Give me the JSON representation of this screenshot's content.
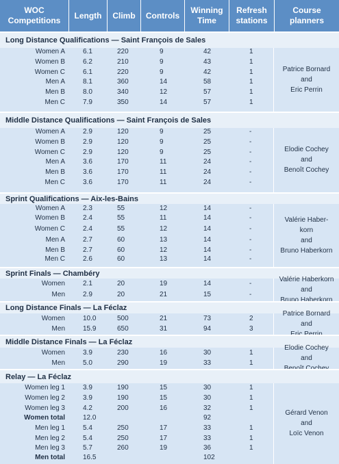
{
  "headers": [
    "WOC Competitions",
    "Length",
    "Climb",
    "Controls",
    "Winning Time",
    "Refresh stations",
    "Course planners"
  ],
  "sections": [
    {
      "title": "Long Distance Qualifications — Saint François de Sales",
      "planners": [
        "Patrice Bornard",
        "and",
        "Eric Perrin"
      ],
      "rows": [
        {
          "label": "Women A",
          "length": "6.1",
          "climb": "220",
          "controls": "9",
          "time": "42",
          "refresh": "1"
        },
        {
          "label": "Women B",
          "length": "6.2",
          "climb": "210",
          "controls": "9",
          "time": "43",
          "refresh": "1"
        },
        {
          "label": "Women C",
          "length": "6.1",
          "climb": "220",
          "controls": "9",
          "time": "42",
          "refresh": "1"
        },
        {
          "label": "Men A",
          "length": "8.1",
          "climb": "360",
          "controls": "14",
          "time": "58",
          "refresh": "1"
        },
        {
          "label": "Men B",
          "length": "8.0",
          "climb": "340",
          "controls": "12",
          "time": "57",
          "refresh": "1"
        },
        {
          "label": "Men C",
          "length": "7.9",
          "climb": "350",
          "controls": "14",
          "time": "57",
          "refresh": "1"
        }
      ]
    },
    {
      "title": "Middle Distance Qualifications — Saint François de Sales",
      "planners": [
        "Elodie Cochey",
        "and",
        "Benoît Cochey"
      ],
      "rows": [
        {
          "label": "Women A",
          "length": "2.9",
          "climb": "120",
          "controls": "9",
          "time": "25",
          "refresh": "-"
        },
        {
          "label": "Women B",
          "length": "2.9",
          "climb": "120",
          "controls": "9",
          "time": "25",
          "refresh": "-"
        },
        {
          "label": "Women C",
          "length": "2.9",
          "climb": "120",
          "controls": "9",
          "time": "25",
          "refresh": "-"
        },
        {
          "label": "Men A",
          "length": "3.6",
          "climb": "170",
          "controls": "11",
          "time": "24",
          "refresh": "-"
        },
        {
          "label": "Men B",
          "length": "3.6",
          "climb": "170",
          "controls": "11",
          "time": "24",
          "refresh": "-"
        },
        {
          "label": "Men C",
          "length": "3.6",
          "climb": "170",
          "controls": "11",
          "time": "24",
          "refresh": "-"
        }
      ]
    },
    {
      "title": "Sprint Qualifications — Aix-les-Bains",
      "planners": [
        "Valérie Haber-",
        "korn",
        "and",
        "Bruno Haberkorn"
      ],
      "rows": [
        {
          "label": "Women A",
          "length": "2.3",
          "climb": "55",
          "controls": "12",
          "time": "14",
          "refresh": "-"
        },
        {
          "label": "Women B",
          "length": "2.4",
          "climb": "55",
          "controls": "11",
          "time": "14",
          "refresh": "-"
        },
        {
          "label": "Women C",
          "length": "2.4",
          "climb": "55",
          "controls": "12",
          "time": "14",
          "refresh": "-"
        },
        {
          "label": "Men A",
          "length": "2.7",
          "climb": "60",
          "controls": "13",
          "time": "14",
          "refresh": "-"
        },
        {
          "label": "Men B",
          "length": "2.7",
          "climb": "60",
          "controls": "12",
          "time": "14",
          "refresh": "-"
        },
        {
          "label": "Men C",
          "length": "2.6",
          "climb": "60",
          "controls": "13",
          "time": "14",
          "refresh": "-"
        }
      ]
    },
    {
      "title": "Sprint Finals — Chambéry",
      "planners": [
        "Valérie Haberkorn",
        "and",
        "Bruno Haberkorn"
      ],
      "rows": [
        {
          "label": "Women",
          "length": "2.1",
          "climb": "20",
          "controls": "19",
          "time": "14",
          "refresh": "-"
        },
        {
          "label": "Men",
          "length": "2.9",
          "climb": "20",
          "controls": "21",
          "time": "15",
          "refresh": "-"
        }
      ]
    },
    {
      "title": "Long Distance Finals — La Féclaz",
      "planners": [
        "Patrice Bornard",
        "and",
        "Eric Perrin"
      ],
      "rows": [
        {
          "label": "Women",
          "length": "10.0",
          "climb": "500",
          "controls": "21",
          "time": "73",
          "refresh": "2"
        },
        {
          "label": "Men",
          "length": "15.9",
          "climb": "650",
          "controls": "31",
          "time": "94",
          "refresh": "3"
        }
      ]
    },
    {
      "title": "Middle Distance Finals — La Féclaz",
      "planners": [
        "Elodie Cochey",
        "and",
        "Benoît Cochey"
      ],
      "rows": [
        {
          "label": "Women",
          "length": "3.9",
          "climb": "230",
          "controls": "16",
          "time": "30",
          "refresh": "1"
        },
        {
          "label": "Men",
          "length": "5.0",
          "climb": "290",
          "controls": "19",
          "time": "33",
          "refresh": "1"
        }
      ]
    },
    {
      "title": "Relay — La Féclaz",
      "planners": [
        "Gérard Venon",
        "and",
        "Loïc Venon"
      ],
      "rows": [
        {
          "label": "Women leg 1",
          "length": "3.9",
          "climb": "190",
          "controls": "15",
          "time": "30",
          "refresh": "1"
        },
        {
          "label": "Women leg 2",
          "length": "3.9",
          "climb": "190",
          "controls": "15",
          "time": "30",
          "refresh": "1"
        },
        {
          "label": "Women leg 3",
          "length": "4.2",
          "climb": "200",
          "controls": "16",
          "time": "32",
          "refresh": "1"
        },
        {
          "label": "Women total",
          "length": "12.0",
          "climb": "",
          "controls": "",
          "time": "92",
          "refresh": "",
          "bold": true
        },
        {
          "label": "Men leg 1",
          "length": "5.4",
          "climb": "250",
          "controls": "17",
          "time": "33",
          "refresh": "1"
        },
        {
          "label": "Men leg 2",
          "length": "5.4",
          "climb": "250",
          "controls": "17",
          "time": "33",
          "refresh": "1"
        },
        {
          "label": "Men leg 3",
          "length": "5.7",
          "climb": "260",
          "controls": "19",
          "time": "36",
          "refresh": "1"
        },
        {
          "label": "Men total",
          "length": "16.5",
          "climb": "",
          "controls": "",
          "time": "102",
          "refresh": "",
          "bold": true
        }
      ]
    }
  ]
}
